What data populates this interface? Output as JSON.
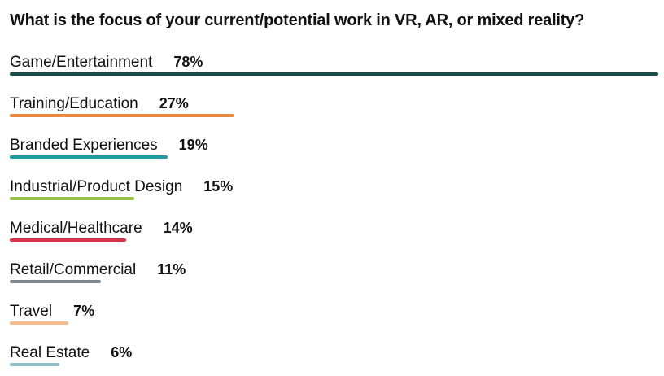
{
  "chart_data": {
    "type": "bar",
    "orientation": "horizontal",
    "title": "What is the focus of your current/potential work in VR, AR, or mixed reality?",
    "categories": [
      "Game/Entertainment",
      "Training/Education",
      "Branded Experiences",
      "Industrial/Product Design",
      "Medical/Healthcare",
      "Retail/Commercial",
      "Travel",
      "Real Estate"
    ],
    "values": [
      78,
      27,
      19,
      15,
      14,
      11,
      7,
      6
    ],
    "value_labels": [
      "78%",
      "27%",
      "19%",
      "15%",
      "14%",
      "11%",
      "7%",
      "6%"
    ],
    "colors": [
      "#1a4d4a",
      "#e8893e",
      "#1f9aa0",
      "#97bf4a",
      "#d6324a",
      "#7d858a",
      "#f2bc8e",
      "#8fbfc6"
    ],
    "xlim": [
      0,
      78
    ],
    "grid": false,
    "legend": "none"
  }
}
